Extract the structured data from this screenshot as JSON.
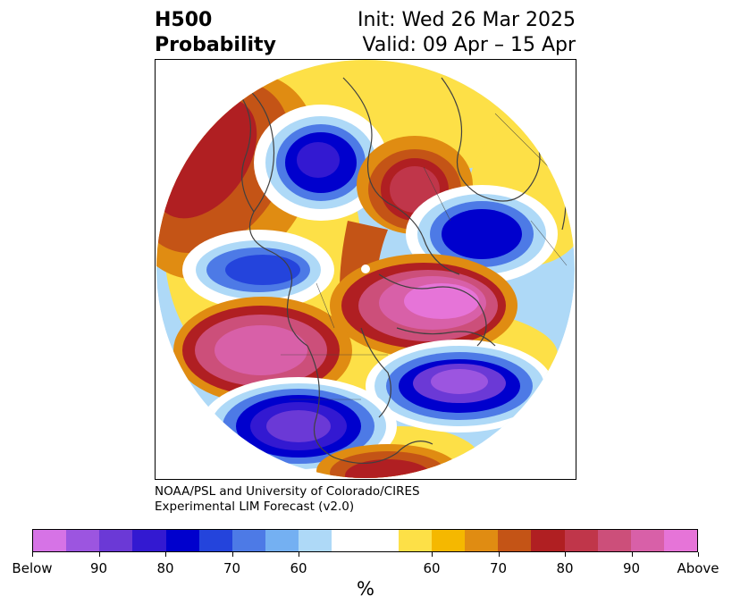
{
  "header": {
    "title_line1": "H500",
    "title_line2": "Probability",
    "init_text": "Init: Wed 26 Mar 2025",
    "valid_text": "Valid: 09 Apr – 15 Apr"
  },
  "credit": {
    "line1": "NOAA/PSL and University of Colorado/CIRES",
    "line2": "Experimental LIM Forecast (v2.0)"
  },
  "colorbar": {
    "unit_label": "%",
    "colors": [
      "#d673e6",
      "#9c55e0",
      "#6b39d6",
      "#3319d1",
      "#0000cd",
      "#2444dc",
      "#4d7ae6",
      "#74b0f2",
      "#aed9f7",
      "#ffffff",
      "#ffffff",
      "#fde047",
      "#f5b800",
      "#e08c12",
      "#c45416",
      "#b01f22",
      "#c0364a",
      "#cc4f7a",
      "#d860a8",
      "#e674d8"
    ],
    "tick_labels": [
      "Below",
      "90",
      "80",
      "70",
      "60",
      "60",
      "70",
      "80",
      "90",
      "Above"
    ]
  },
  "map": {
    "colors": {
      "purple_core": "#9c55e0",
      "deep_blue": "#0000cd",
      "blue": "#4d7ae6",
      "light_blue": "#aed9f7",
      "yellow": "#fde047",
      "orange": "#e08c12",
      "dark_orange": "#c45416",
      "red": "#b01f22",
      "pink": "#d860a8",
      "magenta_core": "#e674d8",
      "coast": "#404040"
    }
  }
}
